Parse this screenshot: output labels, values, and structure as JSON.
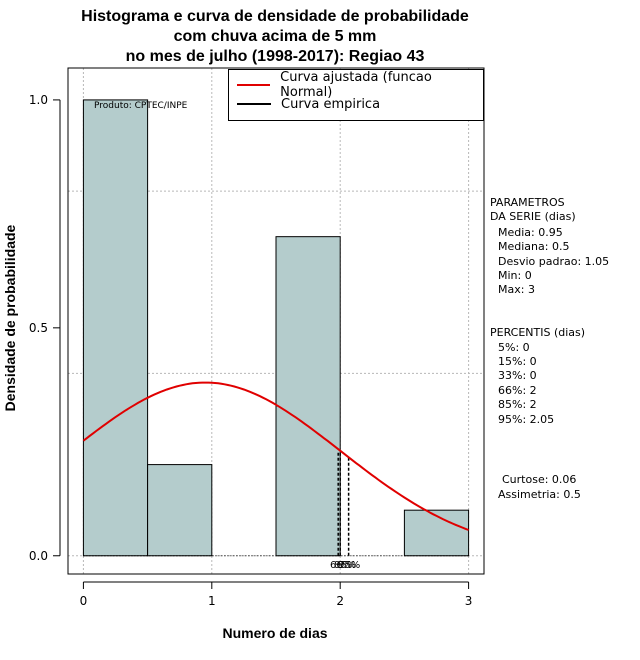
{
  "title": {
    "line1": "Histograma e curva de densidade de probabilidade",
    "line2": "com chuva acima de 5 mm",
    "line3": "no mes de julho (1998-2017): Regiao 43"
  },
  "watermark": "Produto: CPTEC/INPE",
  "legend": {
    "fitted": "Curva ajustada (funcao Normal)",
    "empirical": "Curva empirica",
    "fitted_color": "#e00000",
    "empirical_color": "#000000"
  },
  "params": {
    "header1": "PARAMETROS",
    "header2": "DA SERIE (dias)",
    "media": "Media: 0.95",
    "mediana": "Mediana: 0.5",
    "desvio": "Desvio padrao: 1.05",
    "min": "Min: 0",
    "max": "Max: 3"
  },
  "percentis": {
    "header": "PERCENTIS (dias)",
    "p5": "5%: 0",
    "p15": "15%: 0",
    "p33": "33%: 0",
    "p66": "66%: 2",
    "p85": "85%: 2",
    "p95": "95%: 2.05"
  },
  "moments": {
    "curtose": "Curtose: 0.06",
    "assimetria": "Assimetria: 0.5"
  },
  "percentile_marks": {
    "label1": "66%",
    "label2": "85%",
    "label3": "95%"
  },
  "chart_data": {
    "type": "bar",
    "title": "Histograma e curva de densidade de probabilidade com chuva acima de 5 mm no mes de julho (1998-2017): Regiao 43",
    "xlabel": "Numero de dias",
    "ylabel": "Densidade de probabilidade",
    "xlim": [
      -0.12,
      3.12
    ],
    "ylim": [
      -0.04,
      1.07
    ],
    "xticks": [
      0,
      1,
      2,
      3
    ],
    "yticks": [
      0.0,
      0.5,
      1.0
    ],
    "xtick_labels": [
      "0",
      "1",
      "2",
      "3"
    ],
    "ytick_labels": [
      "0.0",
      "0.5",
      "1.0"
    ],
    "grid": true,
    "bins": [
      {
        "x0": 0.0,
        "x1": 0.5,
        "density": 1.0
      },
      {
        "x0": 0.5,
        "x1": 1.0,
        "density": 0.2
      },
      {
        "x0": 1.0,
        "x1": 1.5,
        "density": 0.0
      },
      {
        "x0": 1.5,
        "x1": 2.0,
        "density": 0.7
      },
      {
        "x0": 2.0,
        "x1": 2.5,
        "density": 0.0
      },
      {
        "x0": 2.5,
        "x1": 3.0,
        "density": 0.1
      }
    ],
    "bar_color": "#b4cccc",
    "normal_fit": {
      "mean": 0.95,
      "sd": 1.05,
      "from": 0,
      "to": 3
    },
    "percentile_lines": [
      {
        "label": "66%",
        "x": 2.0
      },
      {
        "label": "85%",
        "x": 2.0
      },
      {
        "label": "95%",
        "x": 2.05
      }
    ]
  }
}
